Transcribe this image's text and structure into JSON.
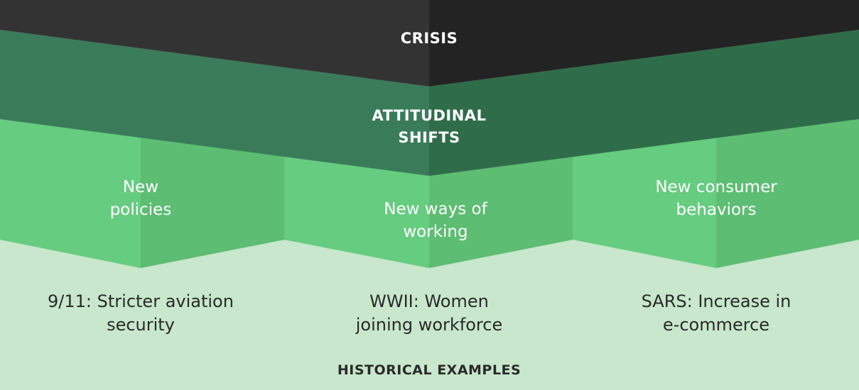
{
  "crisis": {
    "label": "CRISIS"
  },
  "attitudinal": {
    "lines": [
      "ATTITUDINAL",
      "SHIFTS"
    ]
  },
  "outcomes": [
    {
      "lines": [
        "New",
        "policies"
      ]
    },
    {
      "lines": [
        "New ways of",
        "working"
      ]
    },
    {
      "lines": [
        "New consumer",
        "behaviors"
      ]
    }
  ],
  "examples": [
    {
      "lines": [
        "9/11: Stricter aviation",
        "security"
      ]
    },
    {
      "lines": [
        "WWII: Women",
        "joining workforce"
      ]
    },
    {
      "lines": [
        "SARS: Increase in",
        "e-commerce"
      ]
    }
  ],
  "footer": {
    "label": "HISTORICAL EXAMPLES"
  },
  "colors": {
    "crisis_left": "#333333",
    "crisis_right": "#232323",
    "attitudinal_left": "#3a7c5a",
    "attitudinal_right": "#2f6d4a",
    "outcome_left": "#66cc80",
    "outcome_right": "#5dbd72",
    "examples_bg": "#c8e7cc"
  }
}
